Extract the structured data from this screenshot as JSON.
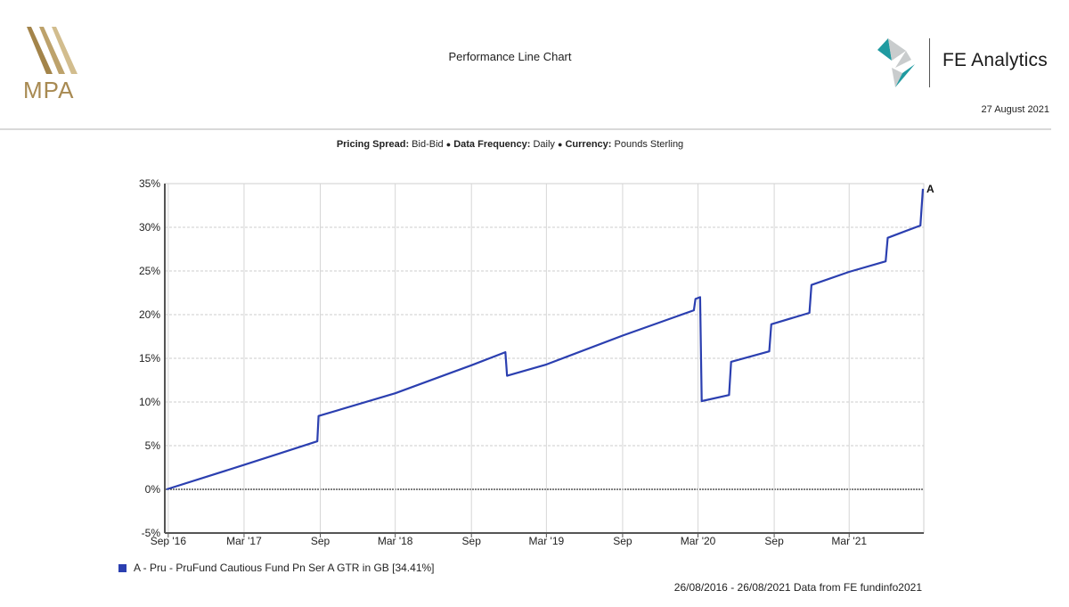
{
  "header": {
    "left_logo": "MPA",
    "title": "Performance Line Chart",
    "right_brand": "FE Analytics",
    "date": "27 August 2021"
  },
  "meta": {
    "pricing_spread_label": "Pricing Spread:",
    "pricing_spread_value": "Bid-Bid",
    "data_frequency_label": "Data Frequency:",
    "data_frequency_value": "Daily",
    "currency_label": "Currency:",
    "currency_value": "Pounds Sterling",
    "separator": "●"
  },
  "legend": {
    "marker_color": "#2b3fb0",
    "label": "A - Pru - PruFund Cautious Fund Pn Ser A GTR in GB [34.41%]"
  },
  "footer": {
    "source": "26/08/2016 - 26/08/2021 Data from FE fundinfo2021"
  },
  "chart_data": {
    "type": "line",
    "title": "Performance Line Chart",
    "subtitle": "Pricing Spread: Bid-Bid • Data Frequency: Daily • Currency: Pounds Sterling",
    "xlabel": "",
    "ylabel": "",
    "ylim": [
      -5,
      35
    ],
    "yticks": [
      "35%",
      "30%",
      "25%",
      "20%",
      "15%",
      "10%",
      "5%",
      "0%",
      "-5%"
    ],
    "xticks": [
      "Sep '16",
      "Mar '17",
      "Sep",
      "Mar '18",
      "Sep",
      "Mar '19",
      "Sep",
      "Mar '20",
      "Sep",
      "Mar '21"
    ],
    "x_range": [
      "26/08/2016",
      "26/08/2021"
    ],
    "grid": true,
    "legend_position": "bottom-left",
    "series_end_label": "A",
    "series": [
      {
        "name": "A - Pru - PruFund Cautious Fund Pn Ser A GTR in GB",
        "final_value": 34.41,
        "color": "#2b3fb0",
        "points": [
          {
            "date": "2016-08-26",
            "value": 0.0
          },
          {
            "date": "2017-03-01",
            "value": 2.8
          },
          {
            "date": "2017-08-25",
            "value": 5.5
          },
          {
            "date": "2017-08-28",
            "value": 8.4
          },
          {
            "date": "2018-03-01",
            "value": 11.0
          },
          {
            "date": "2018-09-01",
            "value": 14.2
          },
          {
            "date": "2018-11-22",
            "value": 15.7
          },
          {
            "date": "2018-11-26",
            "value": 13.0
          },
          {
            "date": "2019-03-01",
            "value": 14.3
          },
          {
            "date": "2019-09-01",
            "value": 17.6
          },
          {
            "date": "2020-02-20",
            "value": 20.5
          },
          {
            "date": "2020-02-24",
            "value": 21.8
          },
          {
            "date": "2020-03-06",
            "value": 22.0
          },
          {
            "date": "2020-03-10",
            "value": 10.1
          },
          {
            "date": "2020-05-15",
            "value": 10.8
          },
          {
            "date": "2020-05-20",
            "value": 14.6
          },
          {
            "date": "2020-08-20",
            "value": 15.8
          },
          {
            "date": "2020-08-25",
            "value": 18.9
          },
          {
            "date": "2020-11-25",
            "value": 20.2
          },
          {
            "date": "2020-11-30",
            "value": 23.4
          },
          {
            "date": "2021-03-01",
            "value": 24.9
          },
          {
            "date": "2021-05-28",
            "value": 26.1
          },
          {
            "date": "2021-06-02",
            "value": 28.8
          },
          {
            "date": "2021-08-20",
            "value": 30.2
          },
          {
            "date": "2021-08-26",
            "value": 34.41
          }
        ]
      }
    ]
  }
}
